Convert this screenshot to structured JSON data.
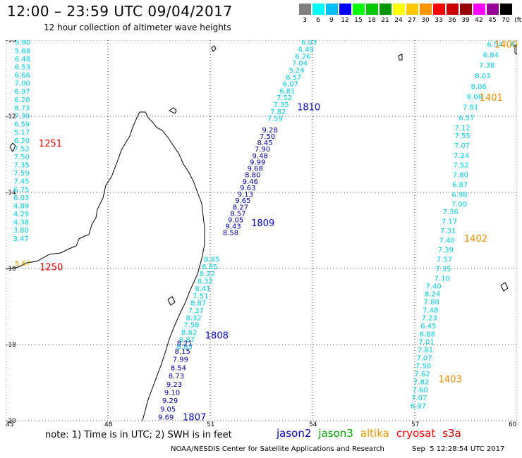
{
  "header": {
    "title": "12:00 – 23:59 UTC 09/04/2017",
    "subtitle": "12 hour collection of altimeter wave heights"
  },
  "color_scale": {
    "labels": [
      "3",
      "6",
      "9",
      "12",
      "15",
      "18",
      "21",
      "24",
      "27",
      "30",
      "33",
      "36",
      "39",
      "42",
      "45",
      "70",
      "(ft)"
    ],
    "colors": [
      "#7f7f7f",
      "#00ffff",
      "#00bfff",
      "#0000ff",
      "#00ff00",
      "#00c800",
      "#009600",
      "#ffff00",
      "#ffc800",
      "#ff9600",
      "#ff0000",
      "#c80000",
      "#960000",
      "#ff00ff",
      "#960096",
      "#000000"
    ]
  },
  "axes": {
    "lat_labels": [
      "-10",
      "-12",
      "-14",
      "-16",
      "-18",
      "-20"
    ],
    "lon_labels": [
      "45",
      "48",
      "51",
      "54",
      "57",
      "60"
    ]
  },
  "tracks": [
    {
      "id": "track-1251",
      "label": "1251",
      "label_color": "#ff0000",
      "label_lat": -12.7,
      "color": "#00c8e6",
      "start": {
        "lat": -10.05,
        "lon": 45.5
      },
      "end": {
        "lat": -15.2,
        "lon": 45.45
      },
      "values": [
        "5.90",
        "5.68",
        "6.48",
        "6.53",
        "6.66",
        "7.00",
        "6.97",
        "6.28",
        "8.73",
        "7.39",
        "6.59",
        "5.17",
        "6.20",
        "7.52",
        "7.50",
        "7.35",
        "7.59",
        "7.45",
        "6.75",
        "6.03",
        "4.89",
        "4.29",
        "4.38",
        "3.80",
        "3.47"
      ]
    },
    {
      "id": "track-1250",
      "label": "1250",
      "label_color": "#ff0000",
      "label_lat": -15.95,
      "color": "#e6a000",
      "start": {
        "lat": -15.85,
        "lon": 45.5
      },
      "end": {
        "lat": -15.85,
        "lon": 45.5
      },
      "values": [
        "5.67"
      ]
    },
    {
      "id": "track-1810",
      "label": "1810",
      "label_color": "#0000c8",
      "label_lat": -11.75,
      "color": "#00c8e6",
      "start": {
        "lat": -10.05,
        "lon": 53.9
      },
      "end": {
        "lat": -12.05,
        "lon": 52.9
      },
      "values": [
        "6.03",
        "6.49",
        "6.26",
        "7.04",
        "5.24",
        "6.57",
        "6.07",
        "6.81",
        "7.52",
        "7.35",
        "7.82",
        "7.59"
      ]
    },
    {
      "id": "track-1809",
      "label": "1809",
      "label_color": "#0000c8",
      "label_lat": -14.8,
      "color": "#0000a0",
      "start": {
        "lat": -12.35,
        "lon": 52.75
      },
      "end": {
        "lat": -15.05,
        "lon": 51.6
      },
      "values": [
        "9.28",
        "7.50",
        "8.45",
        "7.90",
        "9.48",
        "9.99",
        "9.68",
        "8.80",
        "9.46",
        "9.63",
        "9.13",
        "9.65",
        "8.27",
        "8.57",
        "9.05",
        "9.43",
        "8.58"
      ]
    },
    {
      "id": "track-1808",
      "label": "1808",
      "label_color": "#0000c8",
      "label_lat": -17.75,
      "color": "#00c8e6",
      "start": {
        "lat": -15.75,
        "lon": 51.05
      },
      "end": {
        "lat": -18.05,
        "lon": 50.25
      },
      "values": [
        "8.65",
        "8.85",
        "8.22",
        "8.32",
        "8.41",
        "7.51",
        "8.87",
        "7.37",
        "8.32",
        "7.58",
        "8.62",
        "8.87",
        "8.63"
      ]
    },
    {
      "id": "track-1807",
      "label": "1807",
      "label_color": "#0000c8",
      "label_lat": -19.9,
      "color": "#0000a0",
      "start": {
        "lat": -17.95,
        "lon": 50.25
      },
      "end": {
        "lat": -19.9,
        "lon": 49.7
      },
      "values": [
        "8.21",
        "8.15",
        "7.99",
        "8.54",
        "8.73",
        "9.23",
        "9.10",
        "9.29",
        "9.05",
        "9.69"
      ]
    },
    {
      "id": "track-1400",
      "label": "1400",
      "label_color": "#f08c00",
      "label_lat": -10.1,
      "color": "#00c8e6",
      "start": {
        "lat": -10.1,
        "lon": 59.35
      },
      "end": {
        "lat": -12.3,
        "lon": 58.4
      },
      "values": [
        "6.54",
        "6.84",
        "7.38",
        "8.03",
        "8.06",
        "8.08",
        "7.81",
        "6.57",
        "7.12"
      ]
    },
    {
      "id": "track-1401",
      "label": "1401",
      "label_color": "#f08c00",
      "label_lat": -11.5,
      "color": "#00c8e6",
      "start": {
        "lat": -12.5,
        "lon": 58.4
      },
      "end": {
        "lat": -14.3,
        "lon": 58.3
      },
      "values": [
        "7.55",
        "7.07",
        "7.24",
        "7.52",
        "7.80",
        "6.87",
        "6.98",
        "7.00"
      ]
    },
    {
      "id": "track-1402",
      "label": "1402",
      "label_color": "#f08c00",
      "label_lat": -15.2,
      "color": "#00c8e6",
      "start": {
        "lat": -14.5,
        "lon": 58.05
      },
      "end": {
        "lat": -16.25,
        "lon": 57.8
      },
      "values": [
        "7.36",
        "7.17",
        "7.31",
        "7.40",
        "7.39",
        "7.57",
        "7.35",
        "7.10"
      ]
    },
    {
      "id": "track-1403",
      "label": "1403",
      "label_color": "#f08c00",
      "label_lat": -18.9,
      "color": "#00c8e6",
      "start": {
        "lat": -16.45,
        "lon": 57.55
      },
      "end": {
        "lat": -19.6,
        "lon": 57.1
      },
      "values": [
        "7.40",
        "8.24",
        "7.88",
        "7.48",
        "7.23",
        "6.45",
        "6.88",
        "7.01",
        "7.81",
        "7.07",
        "7.50",
        "7.62",
        "7.82",
        "7.60",
        "7.07",
        "6.97"
      ]
    }
  ],
  "edge_labels": [
    {
      "text": "6",
      "color": "#00c8e6",
      "lat": -10.1,
      "lon": 59.95
    }
  ],
  "footer": {
    "note": "note: 1) Time is in UTC; 2) SWH is in feet",
    "satellites": [
      {
        "name": "jason2",
        "color": "#0000c8"
      },
      {
        "name": "jason3",
        "color": "#00a000"
      },
      {
        "name": "altika",
        "color": "#f09600"
      },
      {
        "name": "cryosat",
        "color": "#ff0000"
      },
      {
        "name": "s3a",
        "color": "#c80000"
      }
    ],
    "credit": "NOAA/NESDIS Center for Satellite Applications and Research",
    "timestamp": "Sep  5 12:28:54 UTC 2017"
  }
}
